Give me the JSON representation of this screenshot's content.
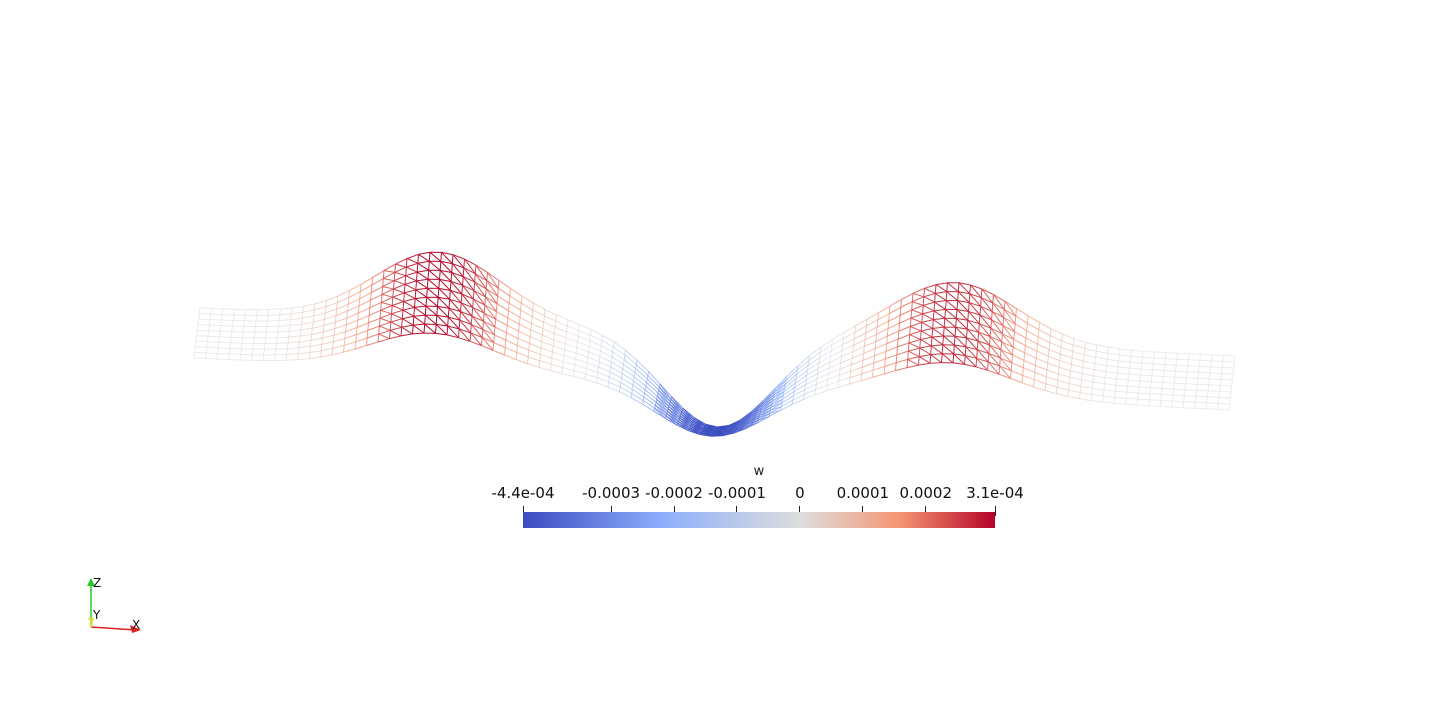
{
  "scene": {
    "background": "#ffffff",
    "representation": "wireframe",
    "colormap": "cool-to-warm",
    "colormap_colors": {
      "min": "#3b4cc0",
      "low": "#8caefb",
      "mid": "#dddddd",
      "high": "#f59774",
      "max": "#b40426"
    }
  },
  "colorbar": {
    "title": "w",
    "range": [
      -0.00044,
      0.00031
    ],
    "ticks": [
      {
        "label": "-4.4e-04",
        "value": -0.00044
      },
      {
        "label": "-0.0003",
        "value": -0.0003
      },
      {
        "label": "-0.0002",
        "value": -0.0002
      },
      {
        "label": "-0.0001",
        "value": -0.0001
      },
      {
        "label": "0",
        "value": 0
      },
      {
        "label": "0.0001",
        "value": 0.0001
      },
      {
        "label": "0.0002",
        "value": 0.0002
      },
      {
        "label": "3.1e-04",
        "value": 0.00031
      }
    ]
  },
  "axes": {
    "z_label": "Z",
    "y_label": "Y",
    "x_label": "X",
    "z_color": "#22cc22",
    "y_color": "#dddd22",
    "x_color": "#dd2222"
  }
}
